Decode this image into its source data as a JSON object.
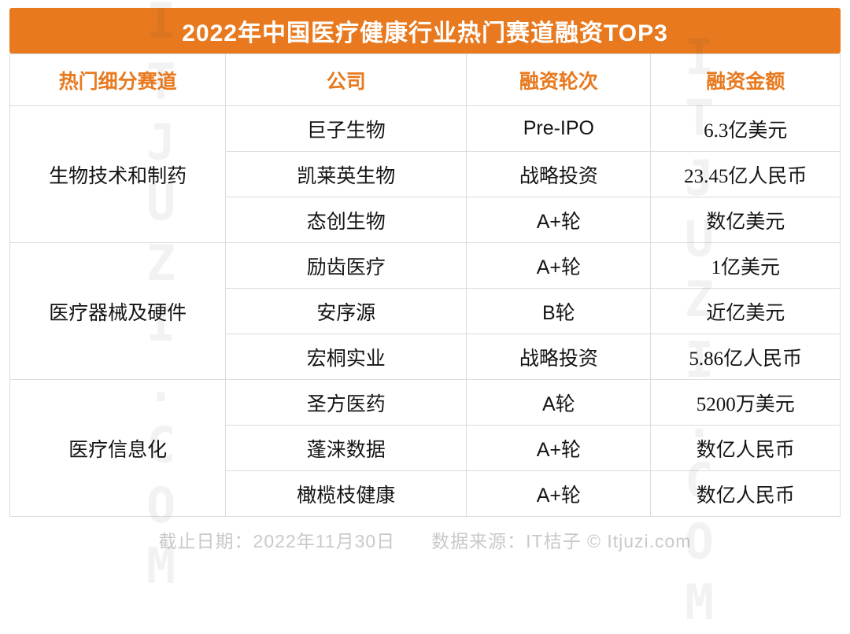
{
  "title": "2022年中国医疗健康行业热门赛道融资TOP3",
  "watermark": "ITJUZI.COM",
  "colors": {
    "accent": "#E8791E",
    "border": "#DCDCDC",
    "footer_text": "#C9C9C9",
    "cell_text": "#141414"
  },
  "table": {
    "headers": [
      "热门细分赛道",
      "公司",
      "融资轮次",
      "融资金额"
    ],
    "groups": [
      {
        "track": "生物技术和制药",
        "rows": [
          {
            "company": "巨子生物",
            "round": "Pre-IPO",
            "amount": "6.3亿美元"
          },
          {
            "company": "凯莱英生物",
            "round": "战略投资",
            "amount": "23.45亿人民币"
          },
          {
            "company": "态创生物",
            "round": "A+轮",
            "amount": "数亿美元"
          }
        ]
      },
      {
        "track": "医疗器械及硬件",
        "rows": [
          {
            "company": "励齿医疗",
            "round": "A+轮",
            "amount": "1亿美元"
          },
          {
            "company": "安序源",
            "round": "B轮",
            "amount": "近亿美元"
          },
          {
            "company": "宏桐实业",
            "round": "战略投资",
            "amount": "5.86亿人民币"
          }
        ]
      },
      {
        "track": "医疗信息化",
        "rows": [
          {
            "company": "圣方医药",
            "round": "A轮",
            "amount": "5200万美元"
          },
          {
            "company": "蓬涞数据",
            "round": "A+轮",
            "amount": "数亿人民币"
          },
          {
            "company": "橄榄枝健康",
            "round": "A+轮",
            "amount": "数亿人民币"
          }
        ]
      }
    ]
  },
  "footer": {
    "deadline_label": "截止日期：",
    "deadline": "2022年11月30日",
    "source_label": "数据来源：",
    "source": "IT桔子 © Itjuzi.com"
  },
  "chart_data": {
    "type": "table",
    "title": "2022年中国医疗健康行业热门赛道融资TOP3",
    "columns": [
      "热门细分赛道",
      "公司",
      "融资轮次",
      "融资金额"
    ],
    "rows": [
      [
        "生物技术和制药",
        "巨子生物",
        "Pre-IPO",
        "6.3亿美元"
      ],
      [
        "生物技术和制药",
        "凯莱英生物",
        "战略投资",
        "23.45亿人民币"
      ],
      [
        "生物技术和制药",
        "态创生物",
        "A+轮",
        "数亿美元"
      ],
      [
        "医疗器械及硬件",
        "励齿医疗",
        "A+轮",
        "1亿美元"
      ],
      [
        "医疗器械及硬件",
        "安序源",
        "B轮",
        "近亿美元"
      ],
      [
        "医疗器械及硬件",
        "宏桐实业",
        "战略投资",
        "5.86亿人民币"
      ],
      [
        "医疗信息化",
        "圣方医药",
        "A轮",
        "5200万美元"
      ],
      [
        "医疗信息化",
        "蓬涞数据",
        "A+轮",
        "数亿人民币"
      ],
      [
        "医疗信息化",
        "橄榄枝健康",
        "A+轮",
        "数亿人民币"
      ]
    ],
    "notes": [
      "截止日期：2022年11月30日",
      "数据来源：IT桔子 © Itjuzi.com"
    ]
  }
}
